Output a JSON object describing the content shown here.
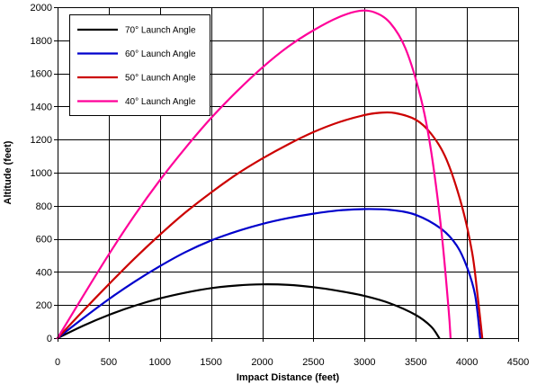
{
  "chart_data": {
    "type": "line",
    "title": "",
    "xlabel": "Impact Distance (feet)",
    "ylabel": "Altitude (feet)",
    "xlim": [
      0,
      4500
    ],
    "ylim": [
      0,
      2000
    ],
    "x_ticks": [
      "0",
      "500",
      "1000",
      "1500",
      "2000",
      "2500",
      "3000",
      "3500",
      "4000",
      "4500"
    ],
    "y_ticks": [
      "0",
      "200",
      "400",
      "600",
      "800",
      "1000",
      "1200",
      "1400",
      "1600",
      "1800",
      "2000"
    ],
    "grid": true,
    "legend_position": "top-left",
    "series": [
      {
        "name": "70° Launch Angle",
        "color": "#000000",
        "x": [
          0,
          250,
          500,
          750,
          1000,
          1250,
          1500,
          1750,
          2000,
          2250,
          2500,
          2750,
          3000,
          3250,
          3500,
          3650,
          3730
        ],
        "y": [
          0,
          75,
          140,
          195,
          240,
          275,
          302,
          318,
          325,
          322,
          308,
          285,
          255,
          210,
          140,
          70,
          0
        ]
      },
      {
        "name": "60° Launch Angle",
        "color": "#0000cc",
        "x": [
          0,
          250,
          500,
          750,
          1000,
          1250,
          1500,
          1750,
          2000,
          2250,
          2500,
          2750,
          3000,
          3250,
          3500,
          3750,
          3900,
          4000,
          4080,
          4130
        ],
        "y": [
          0,
          120,
          235,
          340,
          435,
          520,
          590,
          645,
          690,
          725,
          752,
          772,
          780,
          775,
          745,
          660,
          560,
          430,
          260,
          0
        ]
      },
      {
        "name": "50° Launch Angle",
        "color": "#cc0000",
        "x": [
          0,
          250,
          500,
          750,
          1000,
          1250,
          1500,
          1750,
          2000,
          2250,
          2500,
          2750,
          3000,
          3150,
          3300,
          3500,
          3650,
          3800,
          3950,
          4050,
          4100,
          4150
        ],
        "y": [
          0,
          165,
          325,
          480,
          625,
          760,
          880,
          990,
          1085,
          1170,
          1245,
          1305,
          1348,
          1362,
          1360,
          1320,
          1235,
          1080,
          800,
          520,
          280,
          0
        ]
      },
      {
        "name": "40° Launch Angle",
        "color": "#ff0099",
        "x": [
          0,
          250,
          500,
          750,
          1000,
          1250,
          1500,
          1750,
          2000,
          2250,
          2500,
          2750,
          2950,
          3100,
          3250,
          3400,
          3550,
          3650,
          3750,
          3820,
          3840
        ],
        "y": [
          0,
          255,
          505,
          740,
          955,
          1150,
          1330,
          1490,
          1635,
          1760,
          1860,
          1940,
          1978,
          1968,
          1905,
          1750,
          1450,
          1130,
          650,
          180,
          0
        ]
      }
    ]
  }
}
